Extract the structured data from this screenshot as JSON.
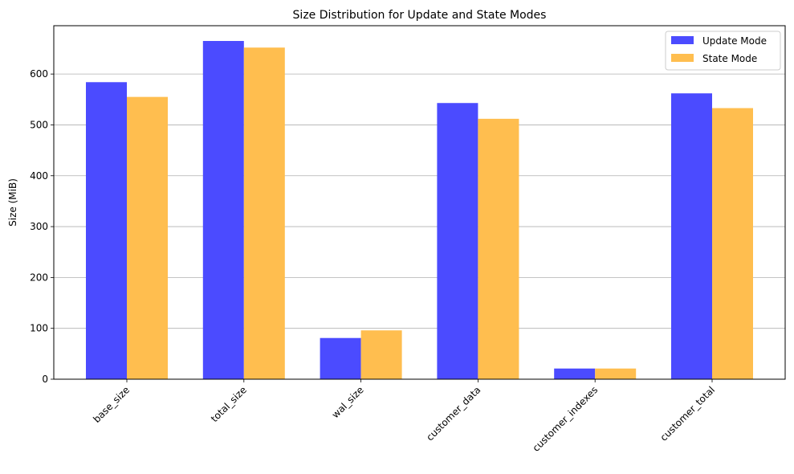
{
  "chart_data": {
    "type": "bar",
    "title": "Size Distribution for Update and State Modes",
    "xlabel": "",
    "ylabel": "Size (MiB)",
    "ylim": [
      0,
      695
    ],
    "yticks": [
      0,
      100,
      200,
      300,
      400,
      500,
      600
    ],
    "grid": "y",
    "legend_position": "top-right",
    "categories": [
      "base_size",
      "total_size",
      "wal_size",
      "customer_data",
      "customer_indexes",
      "customer_total"
    ],
    "series": [
      {
        "name": "Update Mode",
        "color": "#4b4bff",
        "values": [
          584,
          665,
          81,
          543,
          21,
          562
        ]
      },
      {
        "name": "State Mode",
        "color": "#ffbe4f",
        "values": [
          555,
          652,
          96,
          512,
          21,
          533
        ]
      }
    ]
  }
}
